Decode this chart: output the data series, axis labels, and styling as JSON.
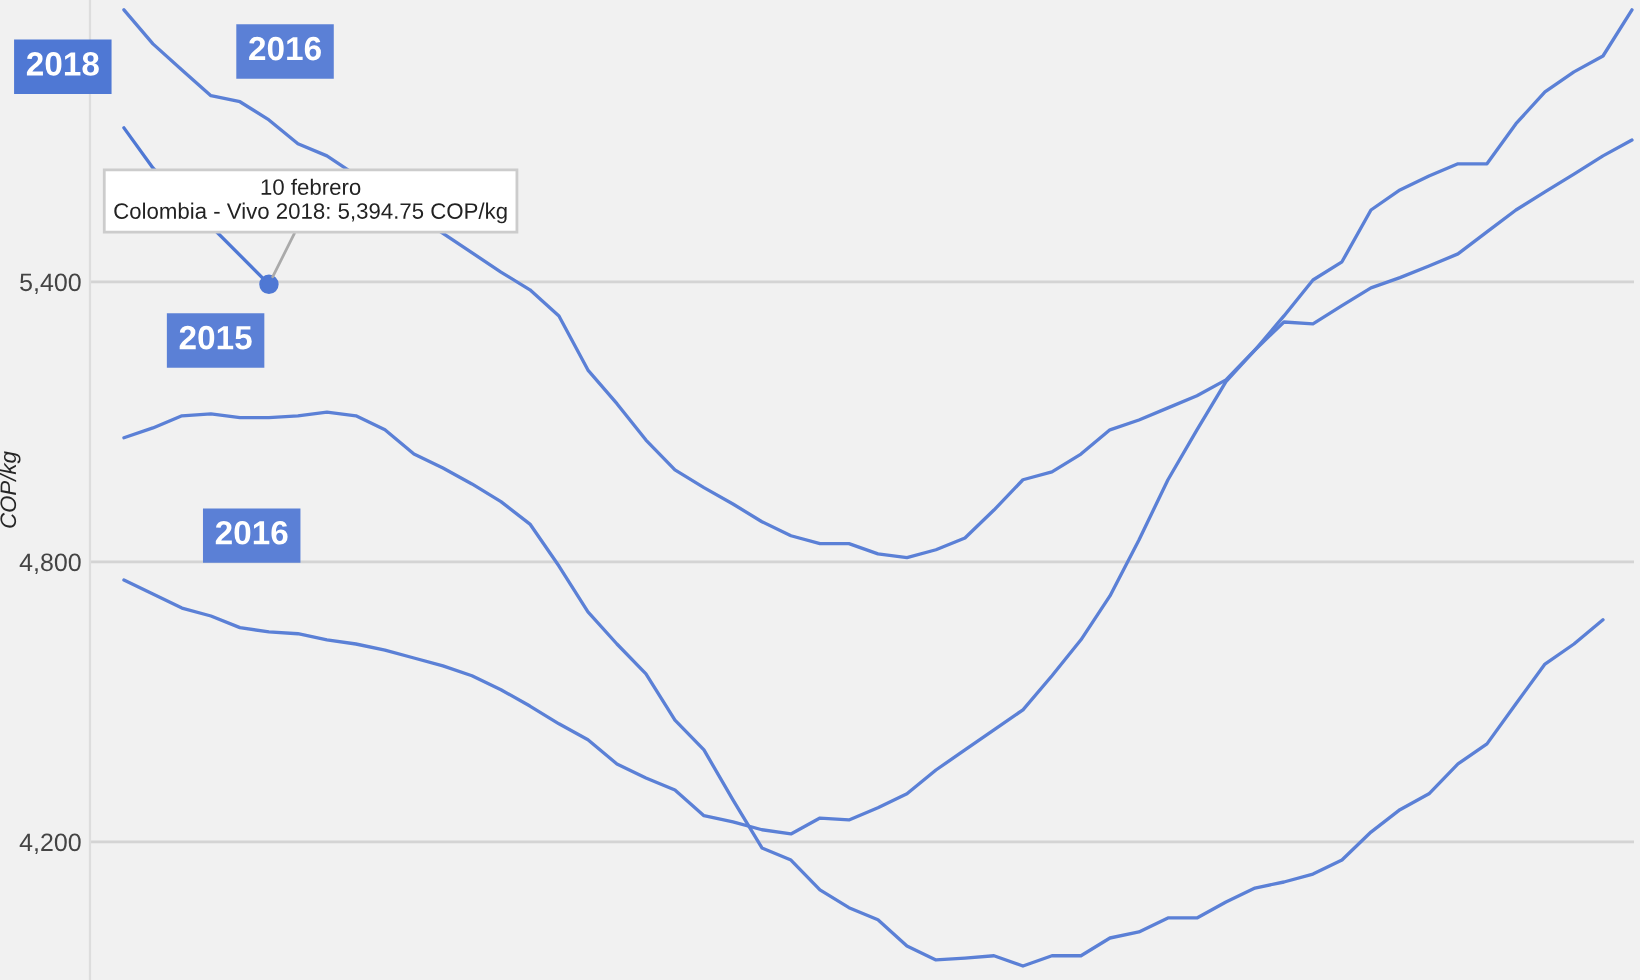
{
  "chart_data": {
    "type": "line",
    "ylabel": "COP/kg",
    "categories": [
      null,
      null,
      null,
      null,
      null,
      null,
      null,
      null,
      null,
      null,
      null,
      null,
      null,
      null,
      null,
      null,
      null,
      null,
      null,
      null,
      null,
      null,
      null,
      null,
      null,
      null,
      null,
      null,
      null,
      null,
      null,
      null,
      null,
      null,
      null,
      null,
      null,
      null,
      null,
      null,
      null,
      null,
      null,
      null,
      null,
      null,
      null,
      null,
      null,
      null,
      null,
      null,
      null
    ],
    "series": [
      {
        "name": "2018",
        "color": "#4f78d4",
        "values": [
          5730,
          5644,
          null,
          null,
          null,
          5394.75,
          null,
          null,
          null,
          null,
          null,
          null,
          null,
          null,
          null,
          null,
          null,
          null,
          null,
          null,
          null,
          null,
          null,
          null,
          null,
          null,
          null,
          null,
          null,
          null,
          null,
          null,
          null,
          null,
          null,
          null,
          null,
          null,
          null,
          null,
          null,
          null,
          null,
          null,
          null,
          null,
          null,
          null,
          null,
          null,
          null,
          null,
          null
        ]
      },
      {
        "name": "2016",
        "color": "#5b80d6",
        "values": [
          5983,
          5910,
          5854,
          5799,
          5786,
          5747,
          5696,
          5670,
          null,
          null,
          null,
          null,
          null,
          5421,
          5383,
          5327,
          5211,
          5139,
          5061,
          4997,
          4959,
          4924,
          4886,
          4856,
          4839,
          4839,
          4817,
          4809,
          4826,
          4851,
          4911,
          4976,
          4993,
          5031,
          5083,
          5104,
          5130,
          5156,
          5190,
          5254,
          5314,
          5310,
          5349,
          5387,
          5409,
          5434,
          5460,
          5507,
          5554,
          5593,
          5631,
          5670,
          5704
        ]
      },
      {
        "name": "2015",
        "color": "#5b80d6",
        "values": [
          5066,
          5087,
          5113,
          5117,
          5109,
          5109,
          5113,
          5121,
          5113,
          5083,
          5031,
          5001,
          4967,
          4929,
          4881,
          4791,
          4693,
          4624,
          4560,
          4461,
          4397,
          4290,
          4187,
          4161,
          4097,
          4059,
          4033,
          3977,
          3947,
          3951,
          3956,
          3934,
          3956,
          3956,
          3994,
          4007,
          4037,
          4037,
          4071,
          4101,
          4114,
          4131,
          4161,
          4221,
          4269,
          4303,
          4367,
          4410,
          4496,
          4581,
          4624,
          4676,
          null
        ]
      },
      {
        "name": "2016",
        "color": "#5b80d6",
        "values": [
          4761,
          4731,
          4701,
          4684,
          4659,
          4650,
          4646,
          4633,
          4624,
          4611,
          4594,
          4577,
          4556,
          4526,
          4491,
          4453,
          4419,
          4367,
          4337,
          4311,
          4256,
          4243,
          4226,
          4217,
          4251,
          4247,
          4273,
          4303,
          4354,
          4397,
          4440,
          4483,
          4556,
          4633,
          4727,
          4847,
          4976,
          5083,
          5186,
          5254,
          5327,
          5404,
          5443,
          5554,
          5597,
          5627,
          5653,
          5653,
          5739,
          5807,
          5850,
          5884,
          5983
        ]
      }
    ],
    "annotations": [
      "10 febrero\nColombia - Vivo 2018: 5,394.75 COP/kg"
    ],
    "ylim": [
      3904,
      6004
    ],
    "yticks": [
      {
        "value": 4200,
        "label": "4,200"
      },
      {
        "value": 4800,
        "label": "4,800"
      },
      {
        "value": 5400,
        "label": "5,400"
      }
    ],
    "grid": "y",
    "legend": false,
    "marker": "none",
    "line_style": "solid",
    "tick_labels": "y"
  }
}
